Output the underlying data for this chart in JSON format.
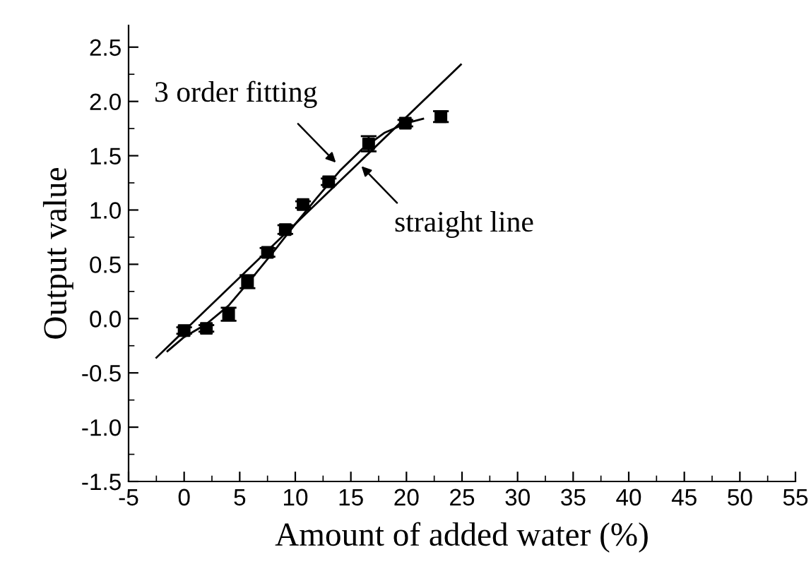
{
  "chart_data": {
    "type": "scatter",
    "xlabel": "Amount of added water (%)",
    "ylabel": "Output value",
    "xlim": [
      -5,
      55
    ],
    "xticks": [
      -5,
      0,
      5,
      10,
      15,
      20,
      25,
      30,
      35,
      40,
      45,
      50,
      55
    ],
    "ylim": [
      -1.5,
      2.7
    ],
    "yticks": [
      -1.5,
      {
        "value": -1,
        "label": "-1.0"
      },
      -0.5,
      {
        "value": 0,
        "label": "0.0"
      },
      0.5,
      {
        "value": 1,
        "label": "1.0"
      },
      1.5,
      {
        "value": 2,
        "label": "2.0"
      },
      2.5
    ],
    "grid": false,
    "series": [
      {
        "color": "#000000",
        "marker": "square",
        "x": [
          0,
          2,
          4,
          5.7,
          7.5,
          9.1,
          10.7,
          13,
          16.6,
          19.9,
          23.1
        ],
        "values": [
          -0.11,
          -0.09,
          0.04,
          0.34,
          0.61,
          0.82,
          1.05,
          1.26,
          1.61,
          1.8,
          1.86
        ],
        "errors": [
          0.03,
          0.03,
          0.06,
          0.06,
          0.04,
          0.04,
          0.03,
          0.03,
          0.07,
          0.03,
          0.05
        ]
      },
      {
        "type": "line",
        "color": "#000000",
        "line_style": "solid",
        "marker": "none",
        "x": [
          -2.5,
          24.9
        ],
        "values": [
          -0.36,
          2.34
        ]
      },
      {
        "type": "line",
        "color": "#000000",
        "line_style": "solid",
        "marker": "none",
        "x": [
          -1.5,
          0,
          2,
          4,
          6,
          8,
          10,
          12,
          14,
          16,
          18,
          20,
          21.5
        ],
        "values": [
          -0.3,
          -0.17,
          -0.05,
          0.12,
          0.36,
          0.61,
          0.87,
          1.12,
          1.36,
          1.56,
          1.71,
          1.8,
          1.84
        ]
      }
    ],
    "annotations": [
      {
        "text": "3 order fitting",
        "x": 13.9,
        "y": 1.41
      },
      {
        "text": "straight line",
        "x": 15.7,
        "y": 1.43
      }
    ]
  }
}
